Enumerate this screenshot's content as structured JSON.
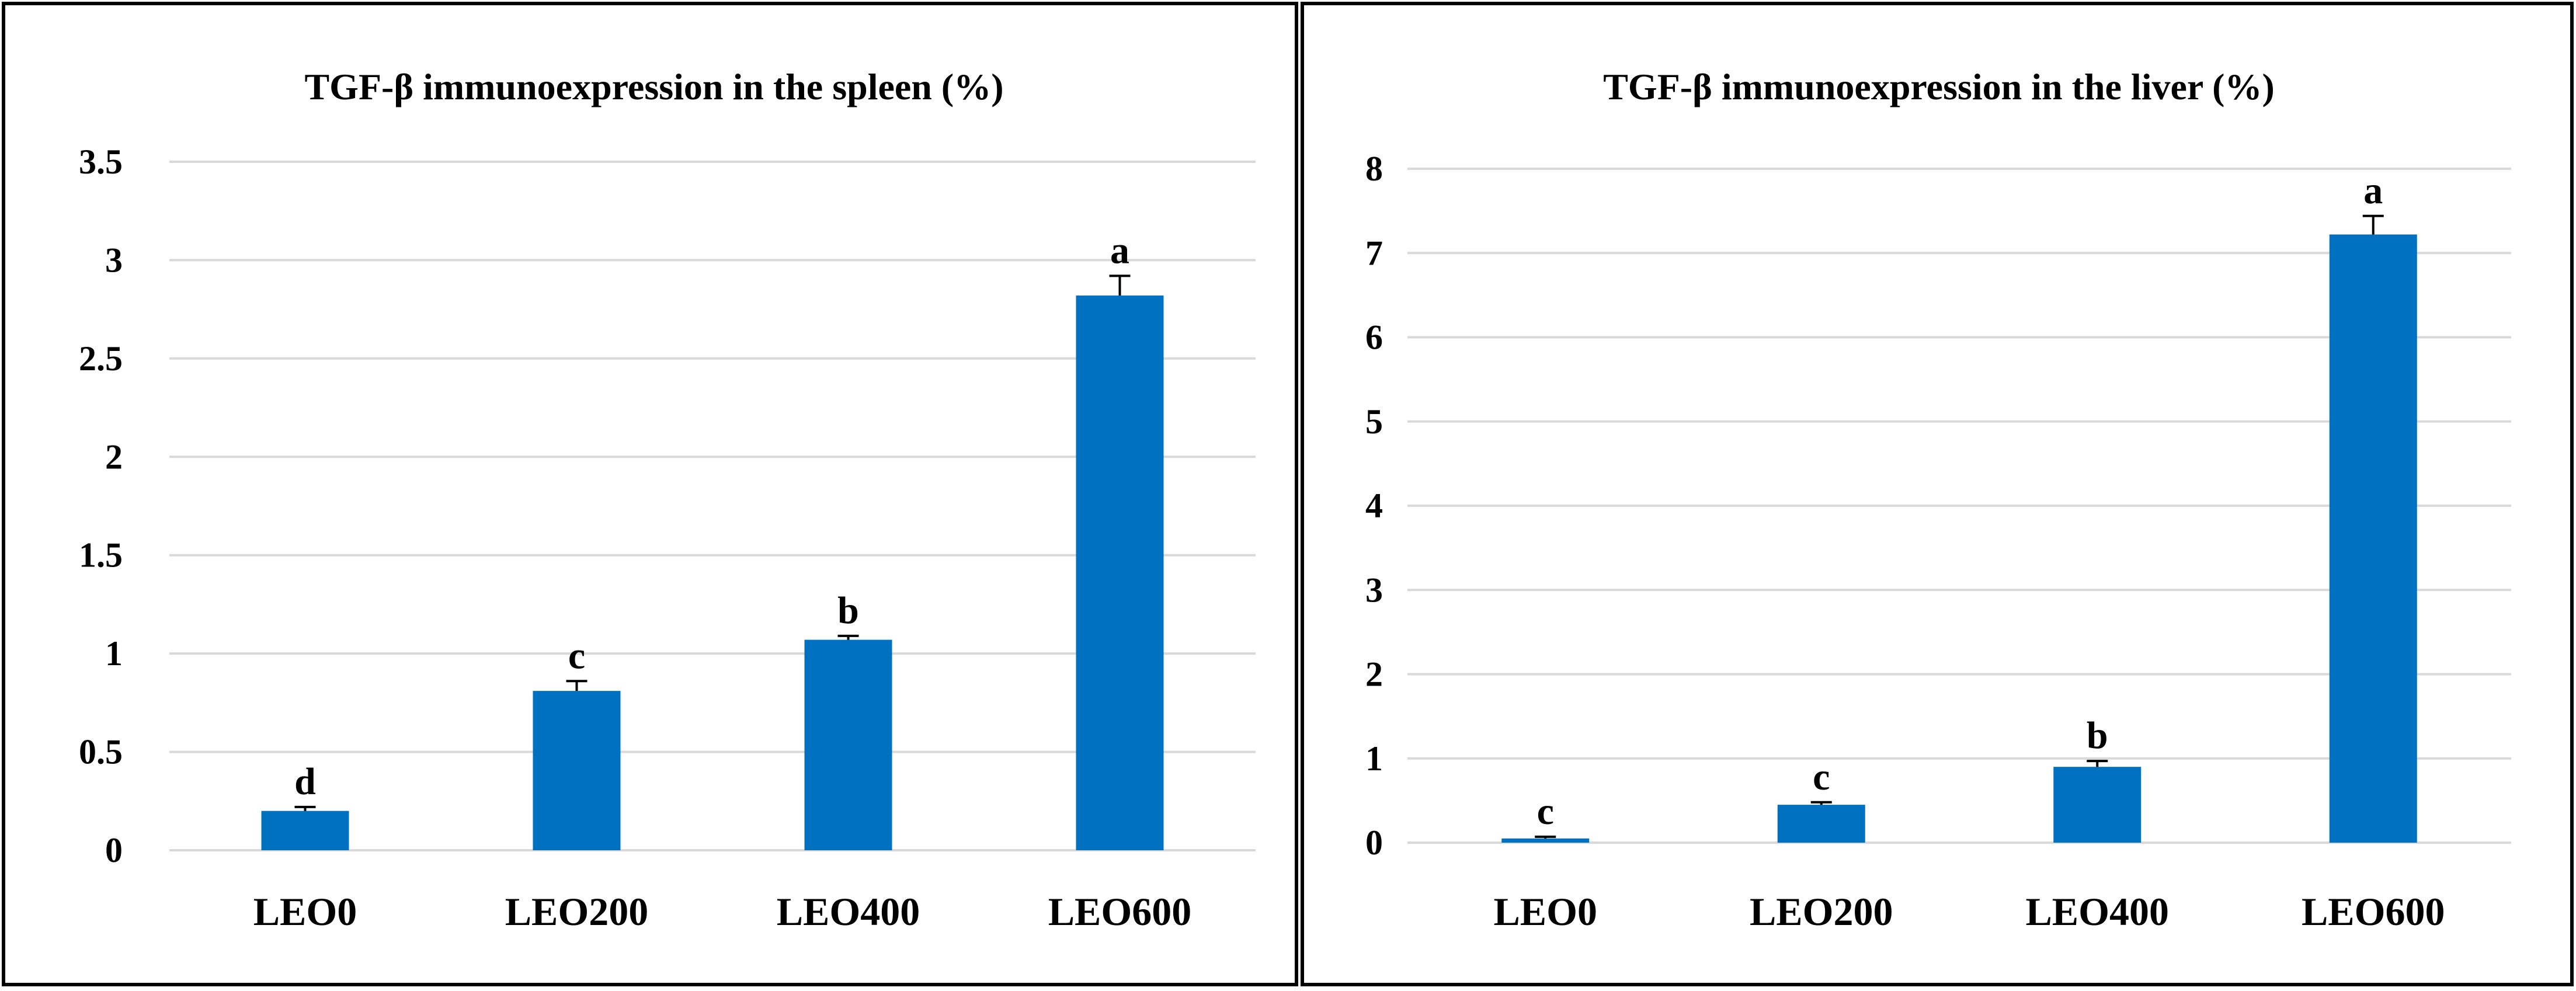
{
  "chart_data": [
    {
      "type": "bar",
      "title": "TGF-β  immunoexpression  in the spleen (%)",
      "xlabel": "",
      "ylabel": "",
      "categories": [
        "LEO0",
        "LEO200",
        "LEO400",
        "LEO600"
      ],
      "values": [
        0.2,
        0.81,
        1.07,
        2.82
      ],
      "errors": [
        0.02,
        0.05,
        0.02,
        0.1
      ],
      "significance": [
        "d",
        "c",
        "b",
        "a"
      ],
      "ylim": [
        0,
        3.5
      ],
      "yticks": [
        "0",
        "0.5",
        "1",
        "1.5",
        "2",
        "2.5",
        "3",
        "3.5"
      ],
      "grid": true,
      "bar_color": "#0070C0"
    },
    {
      "type": "bar",
      "title": "TGF-β  immunoexpression  in the liver (%)",
      "xlabel": "",
      "ylabel": "",
      "categories": [
        "LEO0",
        "LEO200",
        "LEO400",
        "LEO600"
      ],
      "values": [
        0.05,
        0.45,
        0.9,
        7.22
      ],
      "errors": [
        0.02,
        0.03,
        0.07,
        0.22
      ],
      "significance": [
        "c",
        "c",
        "b",
        "a"
      ],
      "ylim": [
        0,
        8
      ],
      "yticks": [
        "0",
        "1",
        "2",
        "3",
        "4",
        "5",
        "6",
        "7",
        "8"
      ],
      "grid": true,
      "bar_color": "#0070C0"
    }
  ]
}
